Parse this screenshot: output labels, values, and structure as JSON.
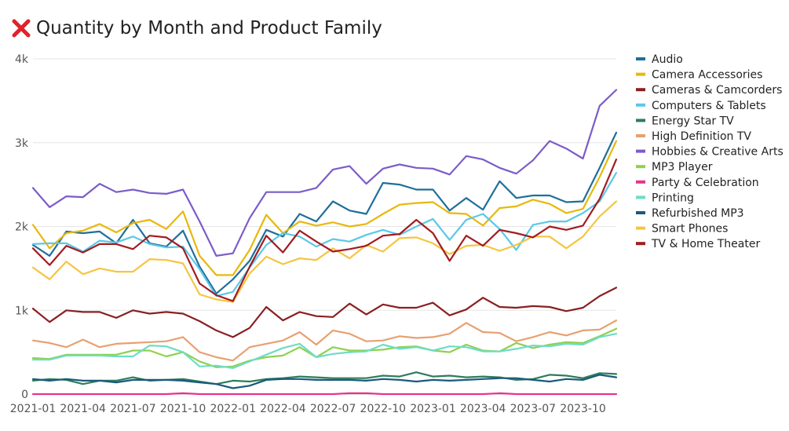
{
  "title": "Quantity by Month and Product Family",
  "title_icon": "red-x-icon",
  "chart_data": {
    "type": "line",
    "title": "Quantity by Month and Product Family",
    "xlabel": "",
    "ylabel": "",
    "ylim": [
      0,
      4000
    ],
    "y_ticks": [
      0,
      1000,
      2000,
      3000,
      4000
    ],
    "y_tick_labels": [
      "0",
      "1k",
      "2k",
      "3k",
      "4k"
    ],
    "x_tick_labels": [
      "2021-01",
      "2021-04",
      "2021-07",
      "2021-10",
      "2022-01",
      "2022-04",
      "2022-07",
      "2022-10",
      "2023-01",
      "2023-04",
      "2023-07",
      "2023-10"
    ],
    "x": [
      "2021-01",
      "2021-02",
      "2021-03",
      "2021-04",
      "2021-05",
      "2021-06",
      "2021-07",
      "2021-08",
      "2021-09",
      "2021-10",
      "2021-11",
      "2021-12",
      "2022-01",
      "2022-02",
      "2022-03",
      "2022-04",
      "2022-05",
      "2022-06",
      "2022-07",
      "2022-08",
      "2022-09",
      "2022-10",
      "2022-11",
      "2022-12",
      "2023-01",
      "2023-02",
      "2023-03",
      "2023-04",
      "2023-05",
      "2023-06",
      "2023-07",
      "2023-08",
      "2023-09",
      "2023-10",
      "2023-11",
      "2023-12"
    ],
    "grid": true,
    "legend_position": "right",
    "series": [
      {
        "name": "Audio",
        "color": "#1f6f99",
        "values": [
          1780,
          1650,
          1940,
          1920,
          1940,
          1800,
          2080,
          1800,
          1760,
          1950,
          1520,
          1200,
          1370,
          1590,
          1960,
          1880,
          2150,
          2060,
          2300,
          2190,
          2150,
          2520,
          2500,
          2440,
          2440,
          2190,
          2340,
          2200,
          2540,
          2340,
          2370,
          2370,
          2290,
          2300,
          2700,
          3120
        ]
      },
      {
        "name": "Camera Accessories",
        "color": "#e8b80c",
        "values": [
          2020,
          1740,
          1920,
          1950,
          2030,
          1930,
          2040,
          2080,
          1970,
          2180,
          1650,
          1420,
          1420,
          1720,
          2140,
          1920,
          2060,
          2010,
          2050,
          2000,
          2030,
          2150,
          2260,
          2280,
          2290,
          2160,
          2150,
          2010,
          2220,
          2240,
          2320,
          2270,
          2160,
          2210,
          2590,
          3020
        ]
      },
      {
        "name": "Cameras & Camcorders",
        "color": "#8a1f22",
        "values": [
          1020,
          860,
          1000,
          980,
          980,
          910,
          1000,
          960,
          980,
          960,
          870,
          760,
          680,
          790,
          1040,
          880,
          980,
          930,
          920,
          1080,
          950,
          1070,
          1030,
          1030,
          1090,
          940,
          1010,
          1150,
          1040,
          1030,
          1050,
          1040,
          990,
          1030,
          1170,
          1270
        ]
      },
      {
        "name": "Computers & Tablets",
        "color": "#5bc8e8",
        "values": [
          1790,
          1800,
          1800,
          1700,
          1830,
          1810,
          1880,
          1790,
          1750,
          1760,
          1490,
          1170,
          1220,
          1510,
          1780,
          1920,
          1880,
          1760,
          1850,
          1820,
          1900,
          1960,
          1900,
          2000,
          2090,
          1840,
          2080,
          2150,
          1970,
          1720,
          2020,
          2060,
          2060,
          2160,
          2300,
          2640
        ]
      },
      {
        "name": "Energy Star TV",
        "color": "#2e7d5b",
        "values": [
          160,
          180,
          170,
          120,
          160,
          160,
          200,
          160,
          170,
          180,
          150,
          120,
          160,
          150,
          180,
          190,
          210,
          200,
          190,
          190,
          190,
          220,
          210,
          260,
          210,
          220,
          200,
          210,
          200,
          170,
          180,
          230,
          220,
          190,
          250,
          240
        ]
      },
      {
        "name": "High Definition TV",
        "color": "#e8a070",
        "values": [
          640,
          610,
          560,
          650,
          560,
          600,
          610,
          620,
          630,
          680,
          500,
          440,
          400,
          560,
          600,
          640,
          740,
          590,
          760,
          720,
          630,
          640,
          690,
          670,
          680,
          720,
          850,
          740,
          730,
          630,
          680,
          740,
          700,
          760,
          770,
          880
        ]
      },
      {
        "name": "Hobbies & Creative Arts",
        "color": "#7b5cc9",
        "values": [
          2460,
          2230,
          2360,
          2350,
          2510,
          2410,
          2440,
          2400,
          2390,
          2440,
          2060,
          1650,
          1680,
          2100,
          2410,
          2410,
          2410,
          2460,
          2680,
          2720,
          2510,
          2690,
          2740,
          2700,
          2690,
          2620,
          2840,
          2800,
          2700,
          2630,
          2790,
          3020,
          2930,
          2810,
          3440,
          3630
        ]
      },
      {
        "name": "MP3 Player",
        "color": "#8fd14f",
        "values": [
          430,
          420,
          470,
          470,
          470,
          470,
          520,
          520,
          450,
          500,
          390,
          320,
          330,
          400,
          440,
          460,
          560,
          440,
          560,
          520,
          520,
          530,
          560,
          570,
          520,
          500,
          590,
          520,
          510,
          610,
          550,
          590,
          620,
          610,
          690,
          780
        ]
      },
      {
        "name": "Party & Celebration",
        "color": "#e8338c",
        "values": [
          0,
          0,
          0,
          0,
          0,
          0,
          0,
          0,
          0,
          10,
          0,
          0,
          0,
          0,
          0,
          0,
          0,
          0,
          0,
          10,
          10,
          0,
          0,
          0,
          0,
          0,
          0,
          0,
          10,
          0,
          0,
          0,
          0,
          0,
          0,
          0
        ]
      },
      {
        "name": "Printing",
        "color": "#6fdcc6",
        "values": [
          410,
          410,
          460,
          460,
          460,
          450,
          450,
          580,
          570,
          500,
          330,
          340,
          310,
          390,
          470,
          550,
          600,
          440,
          480,
          500,
          510,
          590,
          540,
          560,
          520,
          570,
          560,
          510,
          510,
          540,
          580,
          570,
          600,
          590,
          680,
          720
        ]
      },
      {
        "name": "Refurbished MP3",
        "color": "#1a5a7a",
        "values": [
          180,
          160,
          180,
          160,
          160,
          140,
          170,
          170,
          170,
          160,
          140,
          120,
          70,
          100,
          170,
          180,
          180,
          170,
          170,
          170,
          160,
          180,
          170,
          150,
          170,
          160,
          170,
          180,
          190,
          190,
          170,
          150,
          180,
          170,
          230,
          200
        ]
      },
      {
        "name": "Smart Phones",
        "color": "#f5c542",
        "values": [
          1510,
          1370,
          1580,
          1430,
          1500,
          1460,
          1460,
          1610,
          1600,
          1560,
          1190,
          1130,
          1100,
          1440,
          1640,
          1550,
          1620,
          1600,
          1740,
          1620,
          1780,
          1700,
          1860,
          1870,
          1800,
          1670,
          1770,
          1780,
          1710,
          1780,
          1880,
          1880,
          1740,
          1880,
          2120,
          2300
        ]
      },
      {
        "name": "TV & Home Theater",
        "color": "#a11c20",
        "values": [
          1740,
          1540,
          1770,
          1690,
          1790,
          1790,
          1730,
          1890,
          1870,
          1740,
          1320,
          1180,
          1110,
          1520,
          1890,
          1690,
          1950,
          1820,
          1700,
          1730,
          1770,
          1890,
          1910,
          2080,
          1920,
          1590,
          1890,
          1770,
          1960,
          1920,
          1870,
          2000,
          1960,
          2010,
          2330,
          2800
        ]
      }
    ]
  }
}
